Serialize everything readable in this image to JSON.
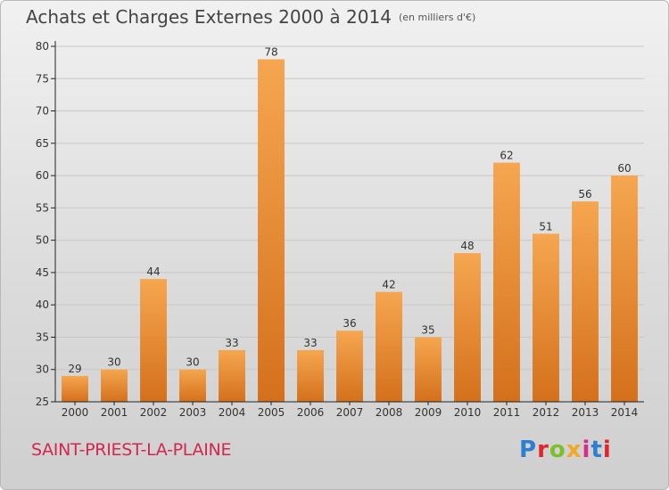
{
  "header": {
    "title": "Achats et Charges Externes 2000 à 2014",
    "subtitle": "(en milliers d'€)"
  },
  "footer": {
    "commune": "SAINT-PRIEST-LA-PLAINE",
    "logo_text": "Proxiti",
    "logo_colors": [
      "#2f7fd0",
      "#e0262b",
      "#7bbf2a",
      "#f5a623",
      "#d92b8a",
      "#2f7fd0",
      "#e0262b"
    ]
  },
  "colors": {
    "bar_top": "#f6a650",
    "bar_bottom": "#d4701c",
    "grid": "#c8c8c8",
    "axis": "#222222"
  },
  "chart_data": {
    "type": "bar",
    "categories": [
      "2000",
      "2001",
      "2002",
      "2003",
      "2004",
      "2005",
      "2006",
      "2007",
      "2008",
      "2009",
      "2010",
      "2011",
      "2012",
      "2013",
      "2014"
    ],
    "values": [
      29,
      30,
      44,
      30,
      33,
      78,
      33,
      36,
      42,
      35,
      48,
      62,
      51,
      56,
      60
    ],
    "ylim": [
      25,
      80
    ],
    "yticks": [
      25,
      30,
      35,
      40,
      45,
      50,
      55,
      60,
      65,
      70,
      75,
      80
    ],
    "grid": true,
    "data_labels": true
  }
}
